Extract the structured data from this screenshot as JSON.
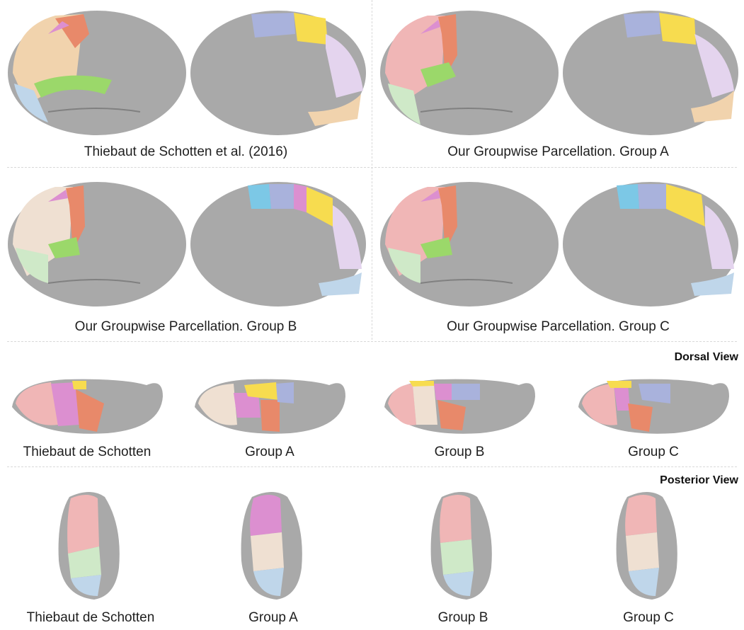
{
  "lateral_medial": [
    {
      "caption": "Thiebaut de Schotten et al. (2016)"
    },
    {
      "caption": "Our Groupwise Parcellation. Group A"
    },
    {
      "caption": "Our Groupwise Parcellation. Group B"
    },
    {
      "caption": "Our Groupwise Parcellation. Group C"
    }
  ],
  "dorsal": {
    "heading": "Dorsal View",
    "captions": [
      "Thiebaut de Schotten",
      "Group A",
      "Group B",
      "Group C"
    ]
  },
  "posterior": {
    "heading": "Posterior View",
    "captions": [
      "Thiebaut de Schotten",
      "Group A",
      "Group B",
      "Group C"
    ]
  },
  "colors": {
    "cortex": "#a9a9a9",
    "orange": "#e8896a",
    "tan": "#f1d3ad",
    "green": "#9bd86a",
    "lavender": "#a9b2dc",
    "yellow": "#f7dc4f",
    "lilac": "#e4d4ee",
    "pink": "#f0b6b6",
    "magenta": "#dc8fd0",
    "lightblue": "#bfd6ea",
    "mint": "#cfe9c8",
    "cyan": "#7cc8e6"
  }
}
